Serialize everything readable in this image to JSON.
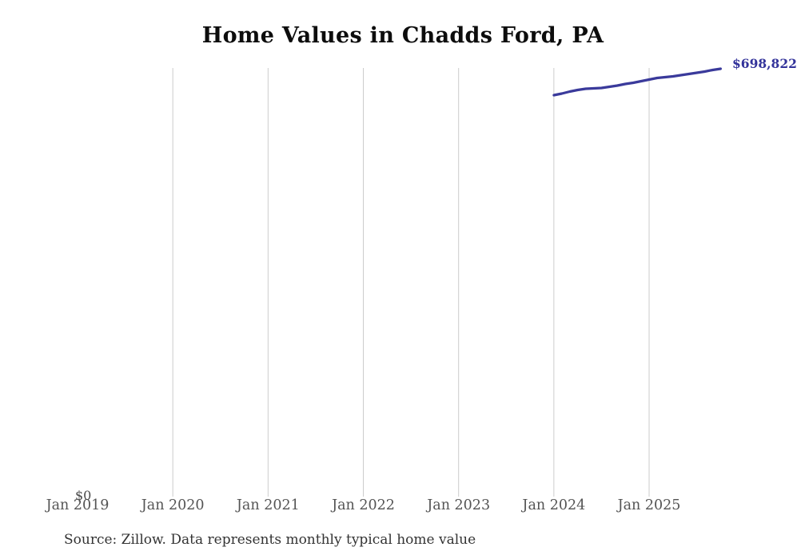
{
  "title": "Home Values in Chadds Ford, PA",
  "source_note": "Source: Zillow. Data represents monthly typical home value",
  "y_zero_label": "$0",
  "end_value_label": "$698,822",
  "colors": {
    "line": "#3a3a9b",
    "end_label": "#32329a",
    "gridline": "#cccccc",
    "title_text": "#0d0d0d",
    "tick_text": "#545454",
    "source_text": "#333333",
    "background": "#ffffff"
  },
  "chart_data": {
    "type": "line",
    "title": "Home Values in Chadds Ford, PA",
    "xlabel": "",
    "ylabel": "",
    "ylim": [
      0,
      700000
    ],
    "grid": "vertical-only",
    "legend_position": "none",
    "x_axis_ticks": [
      "Jan 2019",
      "Jan 2020",
      "Jan 2021",
      "Jan 2022",
      "Jan 2023",
      "Jan 2024",
      "Jan 2025"
    ],
    "gridline_ticks": [
      "Jan 2020",
      "Jan 2021",
      "Jan 2022",
      "Jan 2023",
      "Jan 2024",
      "Jan 2025"
    ],
    "end_point_annotation": "$698,822",
    "series": [
      {
        "name": "Typical home value",
        "x": [
          "Jan 2024",
          "Feb 2024",
          "Mar 2024",
          "Apr 2024",
          "May 2024",
          "Jun 2024",
          "Jul 2024",
          "Aug 2024",
          "Sep 2024",
          "Oct 2024",
          "Nov 2024",
          "Dec 2024",
          "Jan 2025",
          "Feb 2025",
          "Mar 2025",
          "Apr 2025",
          "May 2025",
          "Jun 2025",
          "Jul 2025",
          "Aug 2025",
          "Sep 2025",
          "Oct 2025"
        ],
        "values": [
          655600,
          658300,
          661500,
          664100,
          666100,
          666800,
          667400,
          669400,
          671300,
          674000,
          675900,
          678500,
          681200,
          683800,
          685100,
          686400,
          688400,
          690300,
          692300,
          694200,
          696900,
          698822
        ]
      }
    ]
  }
}
